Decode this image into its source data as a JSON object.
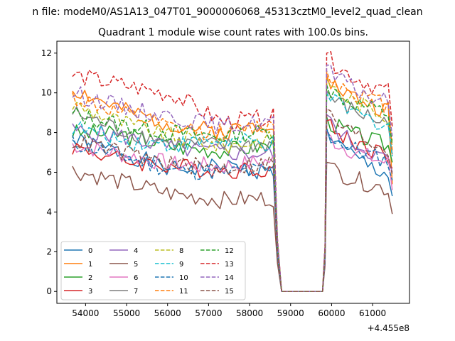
{
  "figure": {
    "suptitle": "n file: modeM0/AS1A13_047T01_9000006068_45313cztM0_level2_quad_clean",
    "offset_label": "+4.455e8"
  },
  "chart_data": {
    "type": "line",
    "title": "Quadrant 1 module wise count rates with 100.0s bins.",
    "xlabel": "",
    "ylabel": "",
    "xlim": [
      53300,
      61900
    ],
    "ylim": [
      -0.6,
      12.6
    ],
    "x_offset": 445500000,
    "xticks": [
      54000,
      55000,
      56000,
      57000,
      58000,
      59000,
      60000,
      61000
    ],
    "yticks": [
      0,
      2,
      4,
      6,
      8,
      10,
      12
    ],
    "grid": false,
    "legend": {
      "placement": "lower-left",
      "columns": 4
    },
    "x_start": 53680,
    "x_step": 100,
    "gap_from": 58780,
    "gap_to": 59780,
    "series": [
      {
        "name": "0",
        "color": "#1f77b4",
        "dash": "solid",
        "before": [
          7.6,
          7.0,
          6.1,
          6.3,
          6.0
        ],
        "mid": 5.9,
        "jump": 8.2,
        "end": 5.8,
        "last": 4.8
      },
      {
        "name": "1",
        "color": "#ff7f0e",
        "dash": "solid",
        "before": [
          10.2,
          9.1,
          8.4,
          8.0,
          8.6
        ],
        "mid": 8.3,
        "jump": 10.9,
        "end": 9.0,
        "last": 5.4
      },
      {
        "name": "2",
        "color": "#2ca02c",
        "dash": "solid",
        "before": [
          8.0,
          7.9,
          7.3,
          7.1,
          7.4
        ],
        "mid": 7.3,
        "jump": 8.8,
        "end": 7.3,
        "last": 6.5
      },
      {
        "name": "3",
        "color": "#d62728",
        "dash": "solid",
        "before": [
          7.3,
          6.6,
          6.3,
          6.1,
          6.2
        ],
        "mid": 6.1,
        "jump": 8.6,
        "end": 6.8,
        "last": 6.2
      },
      {
        "name": "4",
        "color": "#9467bd",
        "dash": "solid",
        "before": [
          8.1,
          7.8,
          7.2,
          7.0,
          6.9
        ],
        "mid": 6.8,
        "jump": 8.9,
        "end": 6.5,
        "last": 6.0
      },
      {
        "name": "5",
        "color": "#8c564b",
        "dash": "solid",
        "before": [
          6.1,
          5.5,
          4.9,
          4.6,
          4.7
        ],
        "mid": 4.7,
        "jump": 6.5,
        "end": 5.1,
        "last": 3.9
      },
      {
        "name": "6",
        "color": "#e377c2",
        "dash": "solid",
        "before": [
          7.4,
          6.9,
          6.4,
          6.3,
          6.6
        ],
        "mid": 6.6,
        "jump": 8.0,
        "end": 6.4,
        "last": 5.1
      },
      {
        "name": "7",
        "color": "#7f7f7f",
        "dash": "solid",
        "before": [
          9.0,
          8.1,
          7.5,
          7.3,
          7.4
        ],
        "mid": 7.3,
        "jump": 10.1,
        "end": 8.4,
        "last": 6.9
      },
      {
        "name": "8",
        "color": "#bcbd22",
        "dash": "dashed",
        "before": [
          9.4,
          8.5,
          7.8,
          7.3,
          7.7
        ],
        "mid": 7.7,
        "jump": 10.7,
        "end": 8.8,
        "last": 7.6
      },
      {
        "name": "9",
        "color": "#17becf",
        "dash": "dashed",
        "before": [
          8.3,
          7.6,
          7.4,
          7.6,
          7.4
        ],
        "mid": 7.3,
        "jump": 10.0,
        "end": 8.3,
        "last": 6.8
      },
      {
        "name": "10",
        "color": "#1f77b4",
        "dash": "dashed",
        "before": [
          7.5,
          6.8,
          6.1,
          6.0,
          6.1
        ],
        "mid": 6.0,
        "jump": 8.2,
        "end": 6.5,
        "last": 5.6
      },
      {
        "name": "11",
        "color": "#ff7f0e",
        "dash": "dashed",
        "before": [
          9.8,
          8.9,
          8.2,
          8.0,
          8.4
        ],
        "mid": 8.3,
        "jump": 11.1,
        "end": 9.3,
        "last": 7.1
      },
      {
        "name": "12",
        "color": "#2ca02c",
        "dash": "dashed",
        "before": [
          8.9,
          8.4,
          8.0,
          7.8,
          8.1
        ],
        "mid": 8.0,
        "jump": 10.4,
        "end": 8.9,
        "last": 7.4
      },
      {
        "name": "13",
        "color": "#d62728",
        "dash": "dashed",
        "before": [
          10.9,
          10.4,
          9.9,
          8.5,
          8.8
        ],
        "mid": 8.9,
        "jump": 12.0,
        "end": 10.0,
        "last": 8.3
      },
      {
        "name": "14",
        "color": "#9467bd",
        "dash": "dashed",
        "before": [
          10.0,
          9.3,
          8.8,
          8.3,
          8.6
        ],
        "mid": 8.6,
        "jump": 11.4,
        "end": 9.4,
        "last": 7.8
      },
      {
        "name": "15",
        "color": "#8c564b",
        "dash": "dashed",
        "before": [
          7.6,
          7.0,
          6.4,
          6.2,
          6.5
        ],
        "mid": 6.5,
        "jump": 9.2,
        "end": 7.1,
        "last": 5.9
      }
    ]
  }
}
